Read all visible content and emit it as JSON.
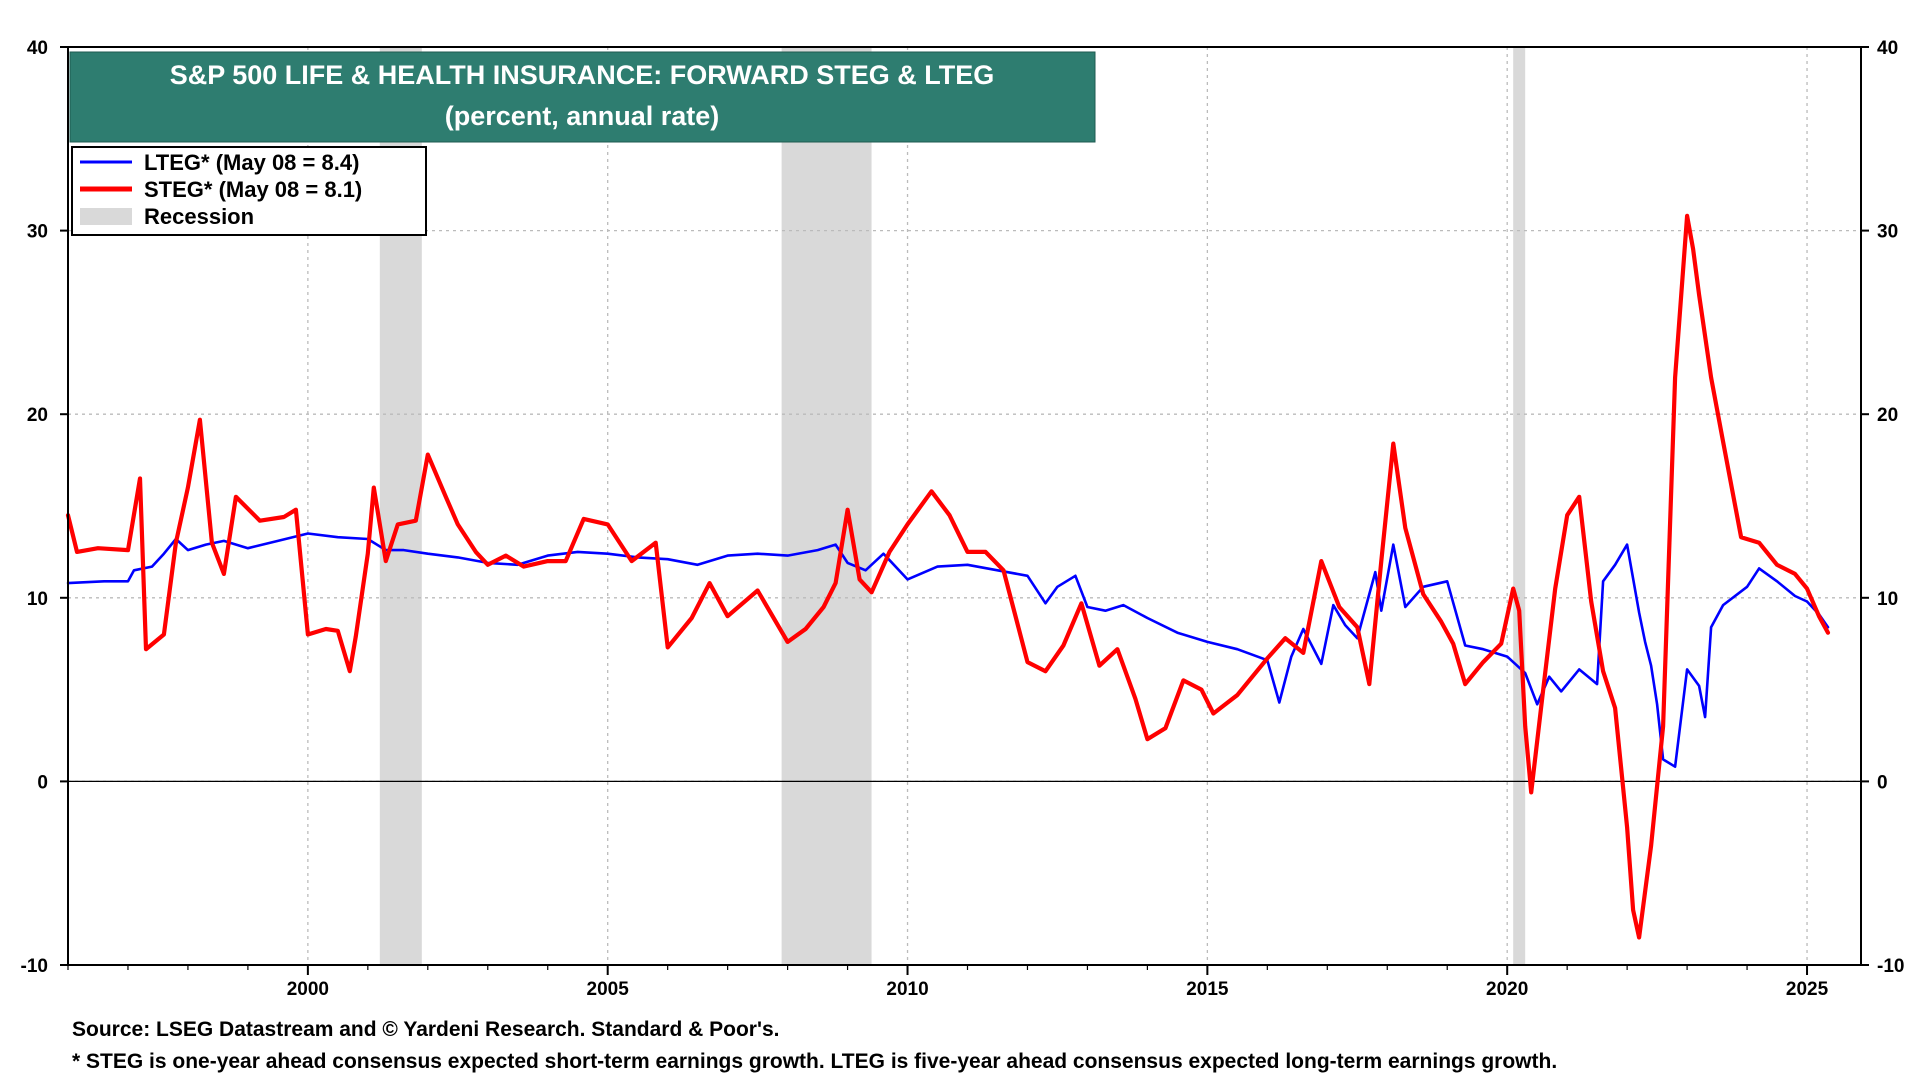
{
  "chart_data": {
    "type": "line",
    "title": "S&P 500 LIFE & HEALTH INSURANCE: FORWARD STEG & LTEG",
    "subtitle": "(percent, annual rate)",
    "xlim": [
      1996.0,
      2025.9
    ],
    "ylim": [
      -10,
      40
    ],
    "x_ticks": [
      2000,
      2005,
      2010,
      2015,
      2020,
      2025
    ],
    "y_ticks": [
      -10,
      0,
      10,
      20,
      30,
      40
    ],
    "grid": true,
    "zero_line": true,
    "legend_position": "top-left",
    "recessions": [
      [
        2001.2,
        2001.9
      ],
      [
        2007.9,
        2009.4
      ],
      [
        2020.1,
        2020.3
      ]
    ],
    "series": [
      {
        "name": "LTEG* (May 08 = 8.4)",
        "color": "#0000ff",
        "points": [
          [
            1996.0,
            10.8
          ],
          [
            1996.6,
            10.9
          ],
          [
            1997.0,
            10.9
          ],
          [
            1997.1,
            11.5
          ],
          [
            1997.4,
            11.7
          ],
          [
            1997.6,
            12.4
          ],
          [
            1997.8,
            13.2
          ],
          [
            1998.0,
            12.6
          ],
          [
            1998.3,
            12.9
          ],
          [
            1998.6,
            13.1
          ],
          [
            1999.0,
            12.7
          ],
          [
            1999.5,
            13.1
          ],
          [
            2000.0,
            13.5
          ],
          [
            2000.5,
            13.3
          ],
          [
            2001.0,
            13.2
          ],
          [
            2001.3,
            12.6
          ],
          [
            2001.6,
            12.6
          ],
          [
            2002.0,
            12.4
          ],
          [
            2002.5,
            12.2
          ],
          [
            2003.0,
            11.9
          ],
          [
            2003.5,
            11.8
          ],
          [
            2004.0,
            12.3
          ],
          [
            2004.5,
            12.5
          ],
          [
            2005.0,
            12.4
          ],
          [
            2005.5,
            12.2
          ],
          [
            2006.0,
            12.1
          ],
          [
            2006.5,
            11.8
          ],
          [
            2007.0,
            12.3
          ],
          [
            2007.5,
            12.4
          ],
          [
            2008.0,
            12.3
          ],
          [
            2008.5,
            12.6
          ],
          [
            2008.8,
            12.9
          ],
          [
            2009.0,
            11.9
          ],
          [
            2009.3,
            11.5
          ],
          [
            2009.6,
            12.4
          ],
          [
            2010.0,
            11.0
          ],
          [
            2010.5,
            11.7
          ],
          [
            2011.0,
            11.8
          ],
          [
            2011.5,
            11.5
          ],
          [
            2012.0,
            11.2
          ],
          [
            2012.3,
            9.7
          ],
          [
            2012.5,
            10.6
          ],
          [
            2012.8,
            11.2
          ],
          [
            2013.0,
            9.5
          ],
          [
            2013.3,
            9.3
          ],
          [
            2013.6,
            9.6
          ],
          [
            2014.0,
            8.9
          ],
          [
            2014.5,
            8.1
          ],
          [
            2015.0,
            7.6
          ],
          [
            2015.5,
            7.2
          ],
          [
            2016.0,
            6.6
          ],
          [
            2016.2,
            4.3
          ],
          [
            2016.4,
            6.8
          ],
          [
            2016.6,
            8.3
          ],
          [
            2016.9,
            6.4
          ],
          [
            2017.1,
            9.6
          ],
          [
            2017.3,
            8.5
          ],
          [
            2017.5,
            7.8
          ],
          [
            2017.8,
            11.4
          ],
          [
            2017.9,
            9.3
          ],
          [
            2018.1,
            12.9
          ],
          [
            2018.3,
            9.5
          ],
          [
            2018.6,
            10.6
          ],
          [
            2019.0,
            10.9
          ],
          [
            2019.3,
            7.4
          ],
          [
            2019.6,
            7.2
          ],
          [
            2020.0,
            6.8
          ],
          [
            2020.3,
            5.9
          ],
          [
            2020.5,
            4.2
          ],
          [
            2020.7,
            5.7
          ],
          [
            2020.9,
            4.9
          ],
          [
            2021.2,
            6.1
          ],
          [
            2021.5,
            5.3
          ],
          [
            2021.6,
            10.9
          ],
          [
            2021.8,
            11.8
          ],
          [
            2022.0,
            12.9
          ],
          [
            2022.2,
            9.2
          ],
          [
            2022.3,
            7.6
          ],
          [
            2022.4,
            6.3
          ],
          [
            2022.5,
            4.2
          ],
          [
            2022.6,
            1.2
          ],
          [
            2022.8,
            0.8
          ],
          [
            2023.0,
            6.1
          ],
          [
            2023.2,
            5.2
          ],
          [
            2023.3,
            3.5
          ],
          [
            2023.4,
            8.4
          ],
          [
            2023.6,
            9.6
          ],
          [
            2024.0,
            10.6
          ],
          [
            2024.2,
            11.6
          ],
          [
            2024.5,
            10.9
          ],
          [
            2024.8,
            10.1
          ],
          [
            2025.0,
            9.8
          ],
          [
            2025.2,
            9.1
          ],
          [
            2025.35,
            8.4
          ]
        ]
      },
      {
        "name": "STEG* (May 08 = 8.1)",
        "color": "#ff0000",
        "points": [
          [
            1996.0,
            14.5
          ],
          [
            1996.15,
            12.5
          ],
          [
            1996.5,
            12.7
          ],
          [
            1997.0,
            12.6
          ],
          [
            1997.2,
            16.5
          ],
          [
            1997.3,
            7.2
          ],
          [
            1997.6,
            8.0
          ],
          [
            1997.8,
            13.0
          ],
          [
            1998.0,
            16.0
          ],
          [
            1998.2,
            19.7
          ],
          [
            1998.4,
            13.0
          ],
          [
            1998.6,
            11.3
          ],
          [
            1998.8,
            15.5
          ],
          [
            1999.2,
            14.2
          ],
          [
            1999.6,
            14.4
          ],
          [
            1999.8,
            14.8
          ],
          [
            2000.0,
            8.0
          ],
          [
            2000.3,
            8.3
          ],
          [
            2000.5,
            8.2
          ],
          [
            2000.7,
            6.0
          ],
          [
            2000.8,
            7.9
          ],
          [
            2001.0,
            12.4
          ],
          [
            2001.1,
            16.0
          ],
          [
            2001.3,
            12.0
          ],
          [
            2001.5,
            14.0
          ],
          [
            2001.8,
            14.2
          ],
          [
            2002.0,
            17.8
          ],
          [
            2002.3,
            15.5
          ],
          [
            2002.5,
            14.0
          ],
          [
            2002.8,
            12.5
          ],
          [
            2003.0,
            11.8
          ],
          [
            2003.3,
            12.3
          ],
          [
            2003.6,
            11.7
          ],
          [
            2004.0,
            12.0
          ],
          [
            2004.3,
            12.0
          ],
          [
            2004.6,
            14.3
          ],
          [
            2005.0,
            14.0
          ],
          [
            2005.4,
            12.0
          ],
          [
            2005.8,
            13.0
          ],
          [
            2006.0,
            7.3
          ],
          [
            2006.4,
            8.9
          ],
          [
            2006.7,
            10.8
          ],
          [
            2007.0,
            9.0
          ],
          [
            2007.5,
            10.4
          ],
          [
            2008.0,
            7.6
          ],
          [
            2008.3,
            8.3
          ],
          [
            2008.6,
            9.5
          ],
          [
            2008.8,
            10.8
          ],
          [
            2009.0,
            14.8
          ],
          [
            2009.2,
            11.0
          ],
          [
            2009.4,
            10.3
          ],
          [
            2009.7,
            12.5
          ],
          [
            2010.0,
            14.0
          ],
          [
            2010.4,
            15.8
          ],
          [
            2010.7,
            14.5
          ],
          [
            2011.0,
            12.5
          ],
          [
            2011.3,
            12.5
          ],
          [
            2011.6,
            11.5
          ],
          [
            2012.0,
            6.5
          ],
          [
            2012.3,
            6.0
          ],
          [
            2012.6,
            7.4
          ],
          [
            2012.9,
            9.7
          ],
          [
            2013.2,
            6.3
          ],
          [
            2013.5,
            7.2
          ],
          [
            2013.8,
            4.5
          ],
          [
            2014.0,
            2.3
          ],
          [
            2014.3,
            2.9
          ],
          [
            2014.6,
            5.5
          ],
          [
            2014.9,
            5.0
          ],
          [
            2015.1,
            3.7
          ],
          [
            2015.5,
            4.7
          ],
          [
            2016.0,
            6.7
          ],
          [
            2016.3,
            7.8
          ],
          [
            2016.6,
            7.0
          ],
          [
            2016.9,
            12.0
          ],
          [
            2017.2,
            9.5
          ],
          [
            2017.5,
            8.4
          ],
          [
            2017.7,
            5.3
          ],
          [
            2017.9,
            12.0
          ],
          [
            2018.1,
            18.4
          ],
          [
            2018.3,
            13.8
          ],
          [
            2018.6,
            10.2
          ],
          [
            2018.9,
            8.7
          ],
          [
            2019.1,
            7.5
          ],
          [
            2019.3,
            5.3
          ],
          [
            2019.6,
            6.5
          ],
          [
            2019.9,
            7.5
          ],
          [
            2020.1,
            10.5
          ],
          [
            2020.2,
            9.3
          ],
          [
            2020.3,
            3.0
          ],
          [
            2020.4,
            -0.6
          ],
          [
            2020.6,
            5.0
          ],
          [
            2020.8,
            10.5
          ],
          [
            2021.0,
            14.5
          ],
          [
            2021.2,
            15.5
          ],
          [
            2021.4,
            9.8
          ],
          [
            2021.6,
            6.0
          ],
          [
            2021.8,
            4.0
          ],
          [
            2022.0,
            -2.5
          ],
          [
            2022.1,
            -7.0
          ],
          [
            2022.2,
            -8.5
          ],
          [
            2022.4,
            -3.5
          ],
          [
            2022.6,
            3.0
          ],
          [
            2022.8,
            22.0
          ],
          [
            2023.0,
            30.8
          ],
          [
            2023.1,
            29.0
          ],
          [
            2023.2,
            26.5
          ],
          [
            2023.4,
            22.0
          ],
          [
            2023.6,
            18.5
          ],
          [
            2023.9,
            13.3
          ],
          [
            2024.2,
            13.0
          ],
          [
            2024.5,
            11.8
          ],
          [
            2024.8,
            11.3
          ],
          [
            2025.0,
            10.5
          ],
          [
            2025.2,
            9.0
          ],
          [
            2025.35,
            8.1
          ]
        ]
      },
      {
        "name": "Recession",
        "color": "#d9d9d9"
      }
    ]
  },
  "footer": {
    "source": "Source: LSEG Datastream and © Yardeni Research. Standard & Poor's.",
    "note": "* STEG is one-year ahead consensus expected short-term earnings growth. LTEG is five-year ahead consensus expected long-term earnings growth."
  }
}
